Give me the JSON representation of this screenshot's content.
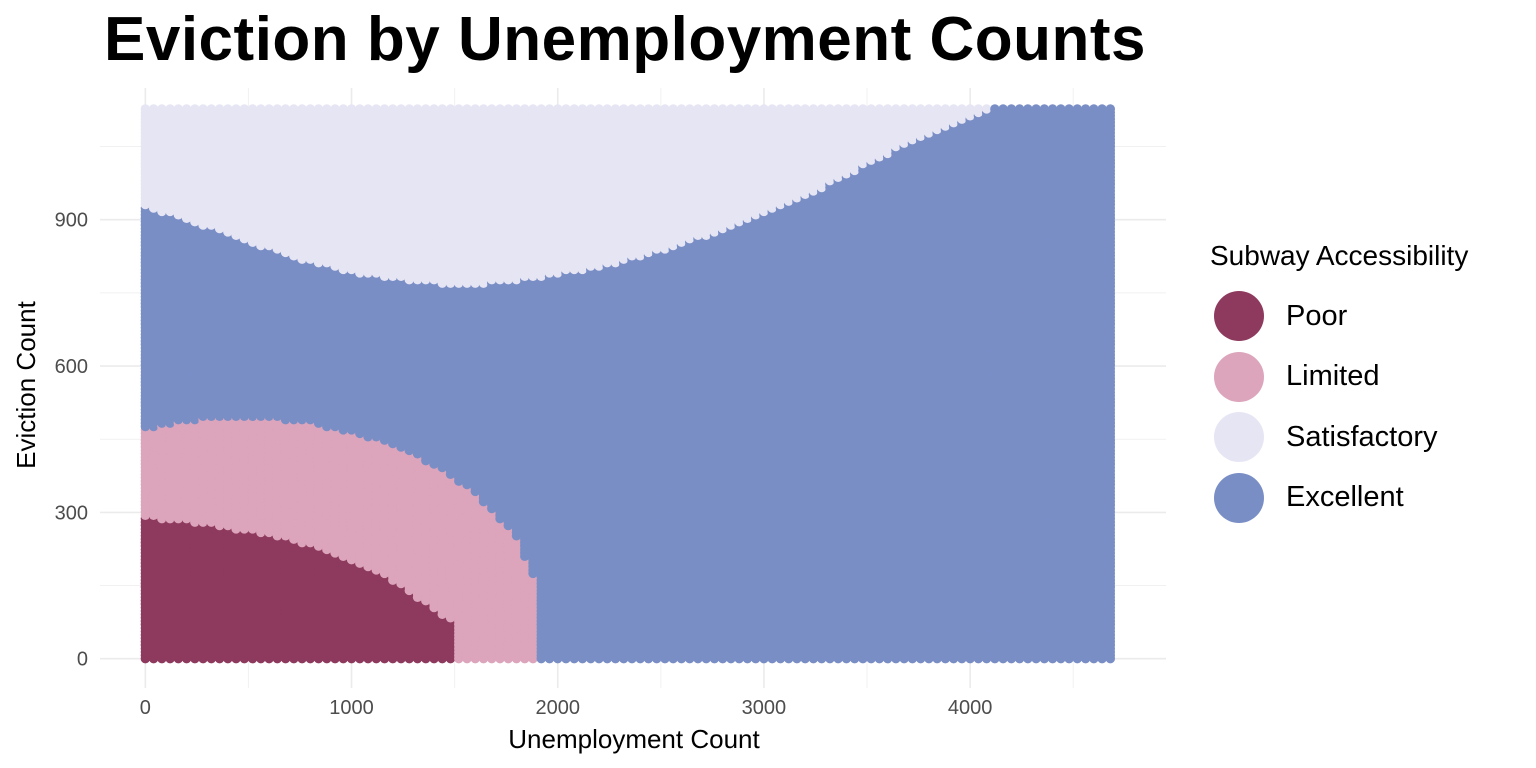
{
  "chart_data": {
    "type": "scatter",
    "title": "Eviction by Unemployment Counts",
    "xlabel": "Unemployment Count",
    "ylabel": "Eviction Count",
    "xlim": [
      -220,
      4950
    ],
    "ylim": [
      -60,
      1170
    ],
    "x_ticks": [
      0,
      1000,
      2000,
      3000,
      4000
    ],
    "y_ticks": [
      0,
      300,
      600,
      900
    ],
    "x_tick_labels": [
      "0",
      "1000",
      "2000",
      "3000",
      "4000"
    ],
    "y_tick_labels": [
      "0",
      "300",
      "600",
      "900"
    ],
    "grid": true,
    "legend_position": "right",
    "legend_title": "Subway Accessibility",
    "point_columns": {
      "x_start": 0,
      "x_end": 4700,
      "x_step": 40,
      "y_start": 0,
      "y_end": 1130,
      "y_step": 7
    },
    "series": [
      {
        "name": "Poor",
        "color": "#8e3a5e",
        "boundary": {
          "x": [
            0,
            300,
            600,
            900,
            1200,
            1400,
            1500
          ],
          "y_top": [
            290,
            275,
            255,
            220,
            160,
            100,
            75
          ]
        }
      },
      {
        "name": "Limited",
        "color": "#dca5bb",
        "boundary": {
          "x": [
            0,
            200,
            400,
            600,
            800,
            1000,
            1200,
            1400,
            1600,
            1800,
            1900
          ],
          "y_top": [
            470,
            488,
            495,
            493,
            483,
            465,
            437,
            398,
            340,
            248,
            150
          ]
        }
      },
      {
        "name": "Satisfactory",
        "color": "#e6e5f4",
        "boundary": {
          "x": [
            0,
            4700
          ],
          "y_top": [
            1130,
            1130
          ]
        }
      },
      {
        "name": "Excellent",
        "color": "#7a8ec6",
        "boundary": {
          "x": [
            0,
            200,
            400,
            600,
            800,
            1000,
            1200,
            1400,
            1600,
            1800,
            2000,
            2200,
            2400,
            2600,
            2800,
            3000,
            3200,
            3400,
            3600,
            3800,
            4000,
            4100,
            4700
          ],
          "y_top": [
            925,
            900,
            870,
            840,
            813,
            793,
            780,
            770,
            768,
            775,
            788,
            803,
            823,
            850,
            878,
            910,
            948,
            990,
            1035,
            1075,
            1110,
            1130,
            1130
          ]
        }
      }
    ]
  }
}
